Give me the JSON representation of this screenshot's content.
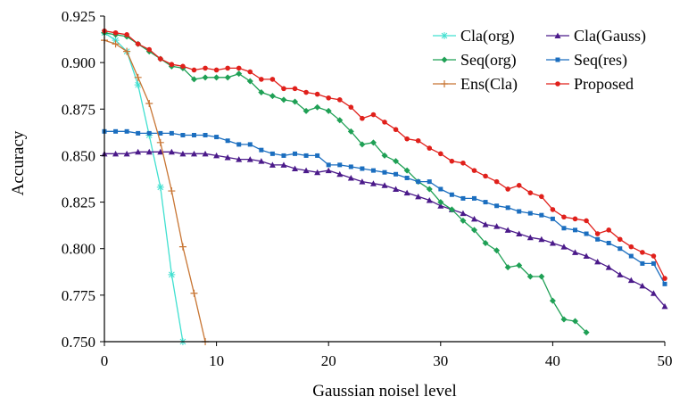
{
  "chart_data": {
    "type": "line",
    "title": "",
    "xlabel": "Gaussian noisel level",
    "ylabel": "Accuracy",
    "xlim": [
      0,
      50
    ],
    "ylim": [
      0.75,
      0.925
    ],
    "xticks": [
      "0",
      "10",
      "20",
      "30",
      "40",
      "50"
    ],
    "xtick_values": [
      0,
      10,
      20,
      30,
      40,
      50
    ],
    "yticks": [
      "0.750",
      "0.775",
      "0.800",
      "0.825",
      "0.850",
      "0.875",
      "0.900",
      "0.925"
    ],
    "ytick_values": [
      0.75,
      0.775,
      0.8,
      0.825,
      0.85,
      0.875,
      0.9,
      0.925
    ],
    "legend_position": "top-right",
    "series": [
      {
        "name": "Cla(org)",
        "color": "#40E0D0",
        "marker": "asterisk",
        "x": [
          0,
          1,
          2,
          3,
          4,
          5,
          6,
          7
        ],
        "values": [
          0.916,
          0.912,
          0.906,
          0.888,
          0.861,
          0.833,
          0.786,
          0.75
        ]
      },
      {
        "name": "Cla(Gauss)",
        "color": "#4B1A8A",
        "marker": "triangle",
        "x": [
          0,
          1,
          2,
          3,
          4,
          5,
          6,
          7,
          8,
          9,
          10,
          11,
          12,
          13,
          14,
          15,
          16,
          17,
          18,
          19,
          20,
          21,
          22,
          23,
          24,
          25,
          26,
          27,
          28,
          29,
          30,
          31,
          32,
          33,
          34,
          35,
          36,
          37,
          38,
          39,
          40,
          41,
          42,
          43,
          44,
          45,
          46,
          47,
          48,
          49,
          50
        ],
        "values": [
          0.851,
          0.851,
          0.851,
          0.852,
          0.852,
          0.852,
          0.852,
          0.851,
          0.851,
          0.851,
          0.85,
          0.849,
          0.848,
          0.848,
          0.847,
          0.845,
          0.845,
          0.843,
          0.842,
          0.841,
          0.842,
          0.84,
          0.838,
          0.836,
          0.835,
          0.834,
          0.832,
          0.83,
          0.828,
          0.826,
          0.823,
          0.821,
          0.819,
          0.816,
          0.813,
          0.812,
          0.81,
          0.808,
          0.806,
          0.805,
          0.803,
          0.801,
          0.798,
          0.796,
          0.793,
          0.79,
          0.786,
          0.783,
          0.78,
          0.776,
          0.769
        ]
      },
      {
        "name": "Seq(org)",
        "color": "#1FA055",
        "marker": "diamond",
        "x": [
          0,
          1,
          2,
          3,
          4,
          5,
          6,
          7,
          8,
          9,
          10,
          11,
          12,
          13,
          14,
          15,
          16,
          17,
          18,
          19,
          20,
          21,
          22,
          23,
          24,
          25,
          26,
          27,
          28,
          29,
          30,
          31,
          32,
          33,
          34,
          35,
          36,
          37,
          38,
          39,
          40,
          41,
          42,
          43
        ],
        "values": [
          0.916,
          0.915,
          0.914,
          0.91,
          0.906,
          0.902,
          0.898,
          0.897,
          0.891,
          0.892,
          0.892,
          0.892,
          0.894,
          0.89,
          0.884,
          0.882,
          0.88,
          0.879,
          0.874,
          0.876,
          0.874,
          0.869,
          0.863,
          0.856,
          0.857,
          0.85,
          0.847,
          0.842,
          0.836,
          0.832,
          0.825,
          0.821,
          0.815,
          0.81,
          0.803,
          0.799,
          0.79,
          0.791,
          0.785,
          0.785,
          0.772,
          0.762,
          0.761,
          0.755
        ]
      },
      {
        "name": "Seq(res)",
        "color": "#1B6EBF",
        "marker": "square",
        "x": [
          0,
          1,
          2,
          3,
          4,
          5,
          6,
          7,
          8,
          9,
          10,
          11,
          12,
          13,
          14,
          15,
          16,
          17,
          18,
          19,
          20,
          21,
          22,
          23,
          24,
          25,
          26,
          27,
          28,
          29,
          30,
          31,
          32,
          33,
          34,
          35,
          36,
          37,
          38,
          39,
          40,
          41,
          42,
          43,
          44,
          45,
          46,
          47,
          48,
          49,
          50
        ],
        "values": [
          0.863,
          0.863,
          0.863,
          0.862,
          0.862,
          0.862,
          0.862,
          0.861,
          0.861,
          0.861,
          0.86,
          0.858,
          0.856,
          0.856,
          0.853,
          0.851,
          0.85,
          0.851,
          0.85,
          0.85,
          0.845,
          0.845,
          0.844,
          0.843,
          0.842,
          0.841,
          0.84,
          0.838,
          0.836,
          0.836,
          0.832,
          0.829,
          0.827,
          0.827,
          0.825,
          0.823,
          0.822,
          0.82,
          0.819,
          0.818,
          0.816,
          0.811,
          0.81,
          0.808,
          0.805,
          0.803,
          0.8,
          0.796,
          0.792,
          0.792,
          0.781
        ]
      },
      {
        "name": "Ens(Cla)",
        "color": "#C87533",
        "marker": "plus",
        "x": [
          0,
          1,
          2,
          3,
          4,
          5,
          6,
          7,
          8,
          9
        ],
        "values": [
          0.912,
          0.91,
          0.906,
          0.892,
          0.878,
          0.857,
          0.831,
          0.801,
          0.776,
          0.75
        ]
      },
      {
        "name": "Proposed",
        "color": "#E0201B",
        "marker": "circle",
        "x": [
          0,
          1,
          2,
          3,
          4,
          5,
          6,
          7,
          8,
          9,
          10,
          11,
          12,
          13,
          14,
          15,
          16,
          17,
          18,
          19,
          20,
          21,
          22,
          23,
          24,
          25,
          26,
          27,
          28,
          29,
          30,
          31,
          32,
          33,
          34,
          35,
          36,
          37,
          38,
          39,
          40,
          41,
          42,
          43,
          44,
          45,
          46,
          47,
          48,
          49,
          50
        ],
        "values": [
          0.917,
          0.916,
          0.915,
          0.91,
          0.907,
          0.902,
          0.899,
          0.898,
          0.896,
          0.897,
          0.896,
          0.897,
          0.897,
          0.895,
          0.891,
          0.891,
          0.886,
          0.886,
          0.884,
          0.883,
          0.881,
          0.88,
          0.876,
          0.87,
          0.872,
          0.868,
          0.864,
          0.859,
          0.858,
          0.854,
          0.851,
          0.847,
          0.846,
          0.842,
          0.839,
          0.836,
          0.832,
          0.834,
          0.83,
          0.828,
          0.821,
          0.817,
          0.816,
          0.815,
          0.808,
          0.81,
          0.805,
          0.801,
          0.798,
          0.796,
          0.784
        ]
      }
    ]
  }
}
